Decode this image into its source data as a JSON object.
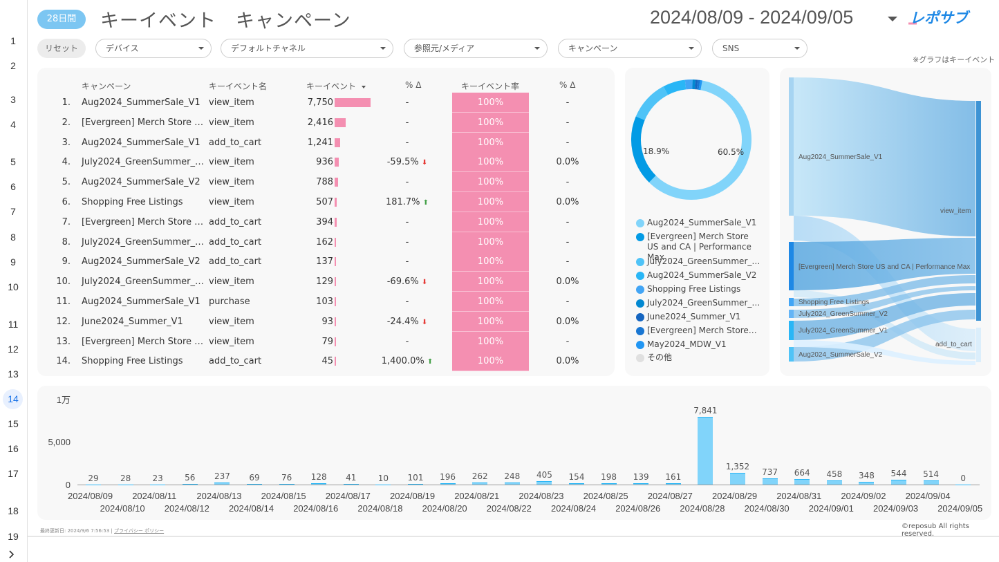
{
  "rail": {
    "items": [
      "1",
      "2",
      "3",
      "4",
      "5",
      "6",
      "7",
      "8",
      "9",
      "10",
      "11",
      "12",
      "13",
      "14",
      "15",
      "16",
      "17",
      "18",
      "19"
    ],
    "active": "14",
    "expand_icon": "chevron-right-icon"
  },
  "header": {
    "period_badge": "28日間",
    "title": "キーイベント　キャンペーン",
    "date_range": "2024/08/09 - 2024/09/05",
    "logo_text": "レポサブ"
  },
  "filters": {
    "reset_label": "リセット",
    "items": [
      {
        "label": "デバイス"
      },
      {
        "label": "デフォルトチャネル"
      },
      {
        "label": "参照元/メディア"
      },
      {
        "label": "キャンペーン"
      },
      {
        "label": "SNS"
      }
    ],
    "note": "※グラフはキーイベント"
  },
  "table": {
    "headers": {
      "campaign": "キャンペーン",
      "event_name": "キーイベント名",
      "key_events": "キーイベント",
      "delta1": "% Δ",
      "rate": "キーイベント率",
      "delta2": "% Δ"
    },
    "rows": [
      {
        "idx": "1.",
        "campaign": "Aug2024_SummerSale_V1",
        "event": "view_item",
        "value": "7,750",
        "num": 7750,
        "delta": "-",
        "dir": "",
        "rate": "100%",
        "delta2": "-"
      },
      {
        "idx": "2.",
        "campaign": "[Evergreen] Merch Store …",
        "event": "view_item",
        "value": "2,416",
        "num": 2416,
        "delta": "-",
        "dir": "",
        "rate": "100%",
        "delta2": "-"
      },
      {
        "idx": "3.",
        "campaign": "Aug2024_SummerSale_V1",
        "event": "add_to_cart",
        "value": "1,241",
        "num": 1241,
        "delta": "-",
        "dir": "",
        "rate": "100%",
        "delta2": "-"
      },
      {
        "idx": "4.",
        "campaign": "July2024_GreenSummer_…",
        "event": "view_item",
        "value": "936",
        "num": 936,
        "delta": "-59.5%",
        "dir": "down",
        "rate": "100%",
        "delta2": "0.0%"
      },
      {
        "idx": "5.",
        "campaign": "Aug2024_SummerSale_V2",
        "event": "view_item",
        "value": "788",
        "num": 788,
        "delta": "-",
        "dir": "",
        "rate": "100%",
        "delta2": "-"
      },
      {
        "idx": "6.",
        "campaign": "Shopping Free Listings",
        "event": "view_item",
        "value": "507",
        "num": 507,
        "delta": "181.7%",
        "dir": "up",
        "rate": "100%",
        "delta2": "0.0%"
      },
      {
        "idx": "7.",
        "campaign": "[Evergreen] Merch Store …",
        "event": "add_to_cart",
        "value": "394",
        "num": 394,
        "delta": "-",
        "dir": "",
        "rate": "100%",
        "delta2": "-"
      },
      {
        "idx": "8.",
        "campaign": "July2024_GreenSummer_…",
        "event": "add_to_cart",
        "value": "162",
        "num": 162,
        "delta": "-",
        "dir": "",
        "rate": "100%",
        "delta2": "-"
      },
      {
        "idx": "9.",
        "campaign": "Aug2024_SummerSale_V2",
        "event": "add_to_cart",
        "value": "137",
        "num": 137,
        "delta": "-",
        "dir": "",
        "rate": "100%",
        "delta2": "-"
      },
      {
        "idx": "10.",
        "campaign": "July2024_GreenSummer_…",
        "event": "view_item",
        "value": "129",
        "num": 129,
        "delta": "-69.6%",
        "dir": "down",
        "rate": "100%",
        "delta2": "0.0%"
      },
      {
        "idx": "11.",
        "campaign": "Aug2024_SummerSale_V1",
        "event": "purchase",
        "value": "103",
        "num": 103,
        "delta": "-",
        "dir": "",
        "rate": "100%",
        "delta2": "-"
      },
      {
        "idx": "12.",
        "campaign": "June2024_Summer_V1",
        "event": "view_item",
        "value": "93",
        "num": 93,
        "delta": "-24.4%",
        "dir": "down",
        "rate": "100%",
        "delta2": "0.0%"
      },
      {
        "idx": "13.",
        "campaign": "[Evergreen] Merch Store …",
        "event": "view_item",
        "value": "79",
        "num": 79,
        "delta": "-",
        "dir": "",
        "rate": "100%",
        "delta2": "-"
      },
      {
        "idx": "14.",
        "campaign": "Shopping Free Listings",
        "event": "add_to_cart",
        "value": "45",
        "num": 45,
        "delta": "1,400.0%",
        "dir": "up",
        "rate": "100%",
        "delta2": "0.0%"
      }
    ]
  },
  "donut": {
    "label_large": "60.5%",
    "label_small": "18.9%",
    "segments": [
      {
        "share": 0.605,
        "color": "#81d4fa"
      },
      {
        "share": 0.189,
        "color": "#039be5"
      },
      {
        "share": 0.11,
        "color": "#4fc3f7"
      },
      {
        "share": 0.06,
        "color": "#29b6f6"
      },
      {
        "share": 0.02,
        "color": "#42a5f5"
      },
      {
        "share": 0.008,
        "color": "#0288d1"
      },
      {
        "share": 0.006,
        "color": "#1565c0"
      },
      {
        "share": 0.006,
        "color": "#1976d2"
      },
      {
        "share": 0.006,
        "color": "#2196f3"
      }
    ],
    "legend": [
      {
        "label": "Aug2024_SummerSale_V1",
        "color": "#81d4fa"
      },
      {
        "label": "[Evergreen] Merch Store US and CA | Performance Max",
        "color": "#039be5"
      },
      {
        "label": "July2024_GreenSummer_…",
        "color": "#4fc3f7"
      },
      {
        "label": "Aug2024_SummerSale_V2",
        "color": "#29b6f6"
      },
      {
        "label": "Shopping Free Listings",
        "color": "#42a5f5"
      },
      {
        "label": "July2024_GreenSummer_…",
        "color": "#0288d1"
      },
      {
        "label": "June2024_Summer_V1",
        "color": "#1565c0"
      },
      {
        "label": "[Evergreen] Merch Store…",
        "color": "#1976d2"
      },
      {
        "label": "May2024_MDW_V1",
        "color": "#2196f3"
      },
      {
        "label": "その他",
        "color": "#e0e0e0"
      }
    ]
  },
  "sankey": {
    "sources": [
      "Aug2024_SummerSale_V1",
      "[Evergreen] Merch Store US and CA | Performance Max",
      "Shopping Free Listings",
      "July2024_GreenSummer_V2",
      "July2024_GreenSummer_V1",
      "Aug2024_SummerSale_V2"
    ],
    "targets": [
      "view_item",
      "add_to_cart"
    ]
  },
  "chart_data": {
    "type": "bar",
    "categories": [
      "2024/08/09",
      "2024/08/10",
      "2024/08/11",
      "2024/08/12",
      "2024/08/13",
      "2024/08/14",
      "2024/08/15",
      "2024/08/16",
      "2024/08/17",
      "2024/08/18",
      "2024/08/19",
      "2024/08/20",
      "2024/08/21",
      "2024/08/22",
      "2024/08/23",
      "2024/08/24",
      "2024/08/25",
      "2024/08/26",
      "2024/08/27",
      "2024/08/28",
      "2024/08/29",
      "2024/08/30",
      "2024/08/31",
      "2024/09/01",
      "2024/09/02",
      "2024/09/03",
      "2024/09/04",
      "2024/09/05"
    ],
    "values": [
      29,
      28,
      23,
      56,
      237,
      69,
      76,
      128,
      41,
      10,
      101,
      196,
      262,
      248,
      405,
      154,
      198,
      139,
      161,
      7841,
      1352,
      737,
      664,
      458,
      348,
      544,
      514,
      0
    ],
    "value_labels": [
      "29",
      "28",
      "23",
      "56",
      "237",
      "69",
      "76",
      "128",
      "41",
      "10",
      "101",
      "196",
      "262",
      "248",
      "405",
      "154",
      "198",
      "139",
      "161",
      "7,841",
      "1,352",
      "737",
      "664",
      "458",
      "348",
      "544",
      "514",
      "0"
    ],
    "yticks": [
      "0",
      "5,000",
      "1万"
    ],
    "ylim": [
      0,
      10000
    ],
    "grid": false,
    "color": "#81d4fa"
  },
  "footer": {
    "updated": "最終更新日: 2024/9/6 7:56:53",
    "privacy": "プライバシー ポリシー",
    "copyright": "©reposub All rights reserved."
  }
}
